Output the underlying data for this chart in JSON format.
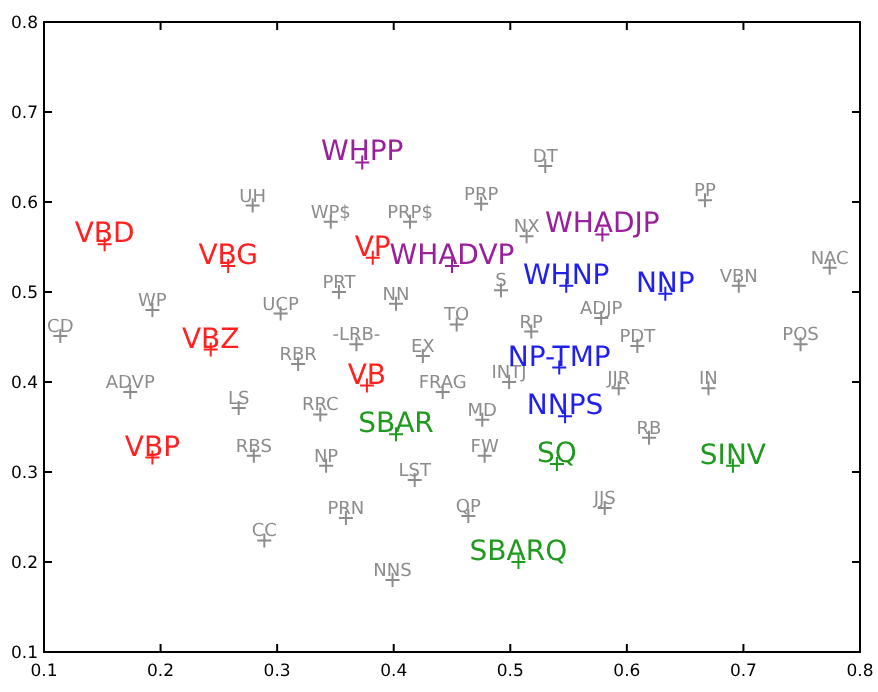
{
  "chart_data": {
    "type": "scatter",
    "marker": "cross",
    "grid": false,
    "xlim": [
      0.1,
      0.8
    ],
    "ylim": [
      0.1,
      0.8
    ],
    "xticks": [
      0.1,
      0.2,
      0.3,
      0.4,
      0.5,
      0.6,
      0.7,
      0.8
    ],
    "yticks": [
      0.1,
      0.2,
      0.3,
      0.4,
      0.5,
      0.6,
      0.7,
      0.8
    ],
    "series": [
      {
        "color": "#8c8c8c",
        "x": [
          0.114,
          0.193,
          0.279,
          0.346,
          0.414,
          0.353,
          0.402,
          0.303,
          0.368,
          0.318,
          0.425,
          0.174,
          0.267,
          0.337,
          0.442,
          0.28,
          0.342,
          0.418,
          0.359,
          0.289,
          0.399,
          0.499,
          0.593,
          0.67,
          0.476,
          0.619,
          0.478,
          0.464,
          0.581,
          0.749,
          0.53,
          0.475,
          0.667,
          0.514,
          0.492,
          0.696,
          0.774,
          0.454,
          0.518,
          0.578,
          0.609
        ],
        "values": [
          0.451,
          0.48,
          0.596,
          0.578,
          0.578,
          0.5,
          0.487,
          0.476,
          0.442,
          0.42,
          0.429,
          0.389,
          0.371,
          0.364,
          0.389,
          0.318,
          0.307,
          0.291,
          0.249,
          0.224,
          0.18,
          0.4,
          0.393,
          0.393,
          0.358,
          0.338,
          0.318,
          0.251,
          0.26,
          0.442,
          0.64,
          0.598,
          0.602,
          0.562,
          0.502,
          0.507,
          0.527,
          0.464,
          0.456,
          0.471,
          0.44
        ],
        "value_labels": [
          "CD",
          "WP",
          "UH",
          "WP$",
          "PRP$",
          "PRT",
          "NN",
          "UCP",
          "-LRB-",
          "RBR",
          "EX",
          "ADVP",
          "LS",
          "RRC",
          "FRAG",
          "RBS",
          "NP",
          "LST",
          "PRN",
          "CC",
          "NNS",
          "INTJ",
          "JJR",
          "IN",
          "MD",
          "RB",
          "FW",
          "QP",
          "JJS",
          "POS",
          "DT",
          "PRP",
          "PP",
          "NX",
          "S",
          "VBN",
          "NAC",
          "TO",
          "RP",
          "ADJP",
          "PDT"
        ]
      },
      {
        "color": "#ff2020",
        "x": [
          0.152,
          0.258,
          0.243,
          0.382,
          0.377,
          0.193
        ],
        "values": [
          0.553,
          0.529,
          0.436,
          0.538,
          0.396,
          0.316
        ],
        "value_labels": [
          "VBD",
          "VBG",
          "VBZ",
          "VP",
          "VB",
          "VBP"
        ]
      },
      {
        "color": "#9a1f9a",
        "x": [
          0.373,
          0.579,
          0.45
        ],
        "values": [
          0.644,
          0.564,
          0.529
        ],
        "value_labels": [
          "WHPP",
          "WHADJP",
          "WHADVP"
        ]
      },
      {
        "color": "#1f1ff0",
        "x": [
          0.548,
          0.633,
          0.542,
          0.547
        ],
        "values": [
          0.507,
          0.498,
          0.416,
          0.362
        ],
        "value_labels": [
          "WHNP",
          "NNP",
          "NP-TMP",
          "NNPS"
        ]
      },
      {
        "color": "#1f9a1f",
        "x": [
          0.402,
          0.54,
          0.691,
          0.507
        ],
        "values": [
          0.342,
          0.309,
          0.307,
          0.2
        ],
        "value_labels": [
          "SBAR",
          "SQ",
          "SINV",
          "SBARQ"
        ]
      }
    ]
  }
}
